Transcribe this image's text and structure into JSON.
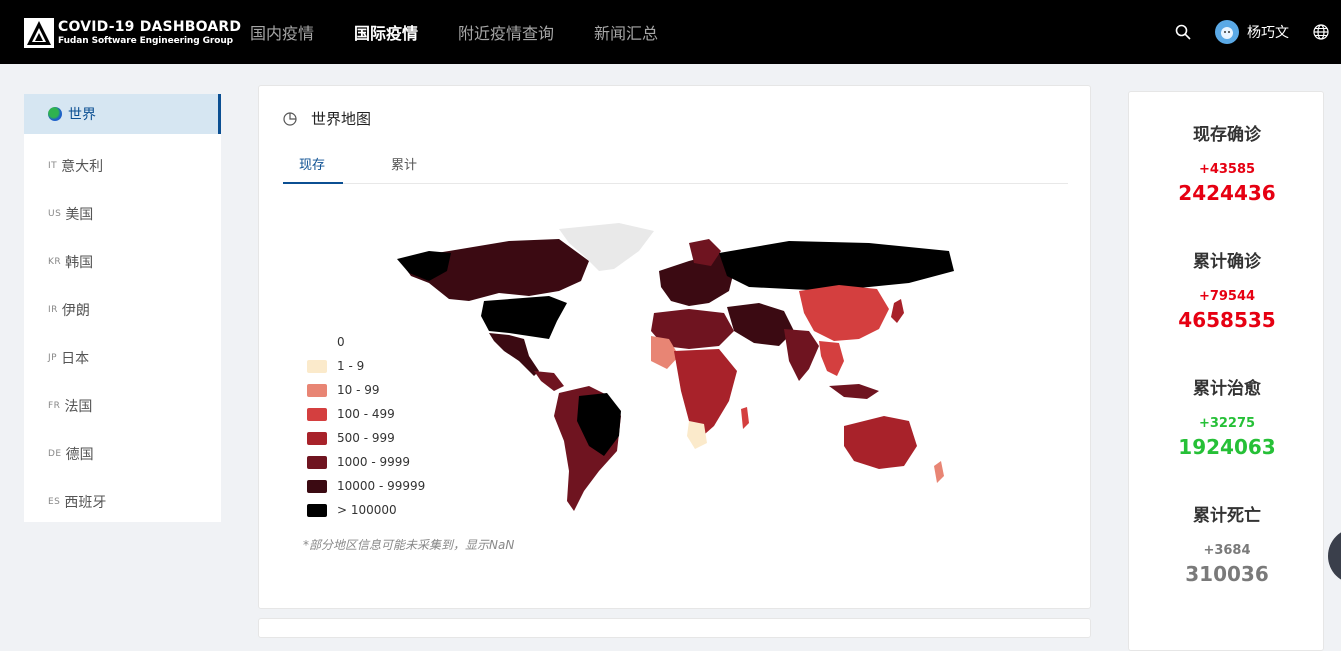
{
  "header": {
    "logo_title": "COVID-19 DASHBOARD",
    "logo_subtitle": "Fudan Software Engineering Group",
    "nav": [
      "国内疫情",
      "国际疫情",
      "附近疫情查询",
      "新闻汇总"
    ],
    "active_nav": "国际疫情",
    "username": "杨巧文"
  },
  "sidebar": {
    "items": [
      {
        "code": "",
        "label": "世界",
        "active": true
      },
      {
        "code": "IT",
        "label": "意大利"
      },
      {
        "code": "US",
        "label": "美国"
      },
      {
        "code": "KR",
        "label": "韩国"
      },
      {
        "code": "IR",
        "label": "伊朗"
      },
      {
        "code": "JP",
        "label": "日本"
      },
      {
        "code": "FR",
        "label": "法国"
      },
      {
        "code": "DE",
        "label": "德国"
      },
      {
        "code": "ES",
        "label": "西班牙"
      }
    ]
  },
  "main": {
    "title": "世界地图",
    "tabs": [
      "现存",
      "累计"
    ],
    "active_tab": "现存",
    "legend": [
      {
        "label": "0",
        "color": "#ffffff"
      },
      {
        "label": "1 - 9",
        "color": "#fbeacb"
      },
      {
        "label": "10 - 99",
        "color": "#e88574"
      },
      {
        "label": "100 - 499",
        "color": "#d43f3f"
      },
      {
        "label": "500 - 999",
        "color": "#a8222a"
      },
      {
        "label": "1000 - 9999",
        "color": "#6f1420"
      },
      {
        "label": "10000 - 99999",
        "color": "#3b0a12"
      },
      {
        "label": "> 100000",
        "color": "#000000"
      }
    ],
    "note": "*部分地区信息可能未采集到，显示NaN"
  },
  "stats": [
    {
      "label": "现存确诊",
      "delta": "+43585",
      "value": "2424436",
      "color": "#e60012"
    },
    {
      "label": "累计确诊",
      "delta": "+79544",
      "value": "4658535",
      "color": "#e60012"
    },
    {
      "label": "累计治愈",
      "delta": "+32275",
      "value": "1924063",
      "color": "#26c037"
    },
    {
      "label": "累计死亡",
      "delta": "+3684",
      "value": "310036",
      "color": "#7a7a7a"
    }
  ]
}
